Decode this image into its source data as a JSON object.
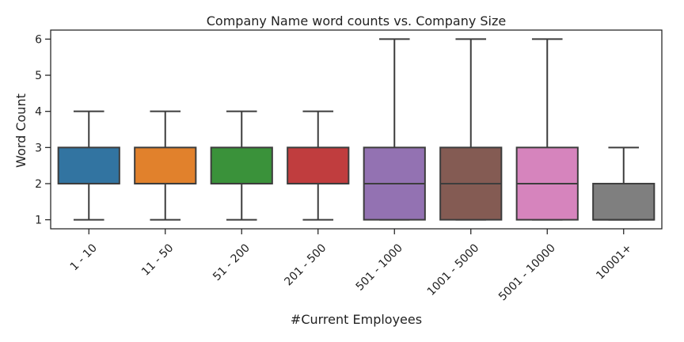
{
  "chart_data": {
    "type": "box",
    "title": "Company Name word counts vs. Company Size",
    "xlabel": "#Current Employees",
    "ylabel": "Word Count",
    "ylim": [
      0.75,
      6.25
    ],
    "yticks": [
      1,
      2,
      3,
      4,
      5,
      6
    ],
    "categories": [
      "1 - 10",
      "11 - 50",
      "51 - 200",
      "201 - 500",
      "501 - 1000",
      "1001 - 5000",
      "5001 - 10000",
      "10001+"
    ],
    "colors": [
      "#3274a1",
      "#e1812c",
      "#3a923a",
      "#c03d3e",
      "#9372b2",
      "#845b53",
      "#d684bd",
      "#7f7f7f"
    ],
    "boxes": [
      {
        "whisker_low": 1,
        "q1": 2,
        "median": 2,
        "q3": 3,
        "whisker_high": 4
      },
      {
        "whisker_low": 1,
        "q1": 2,
        "median": 2,
        "q3": 3,
        "whisker_high": 4
      },
      {
        "whisker_low": 1,
        "q1": 2,
        "median": 2,
        "q3": 3,
        "whisker_high": 4
      },
      {
        "whisker_low": 1,
        "q1": 2,
        "median": 2,
        "q3": 3,
        "whisker_high": 4
      },
      {
        "whisker_low": 1,
        "q1": 1,
        "median": 2,
        "q3": 3,
        "whisker_high": 6
      },
      {
        "whisker_low": 1,
        "q1": 1,
        "median": 2,
        "q3": 3,
        "whisker_high": 6
      },
      {
        "whisker_low": 1,
        "q1": 1,
        "median": 2,
        "q3": 3,
        "whisker_high": 6
      },
      {
        "whisker_low": 1,
        "q1": 1,
        "median": 1,
        "q3": 2,
        "whisker_high": 3
      }
    ],
    "grid": false,
    "legend": "none"
  }
}
